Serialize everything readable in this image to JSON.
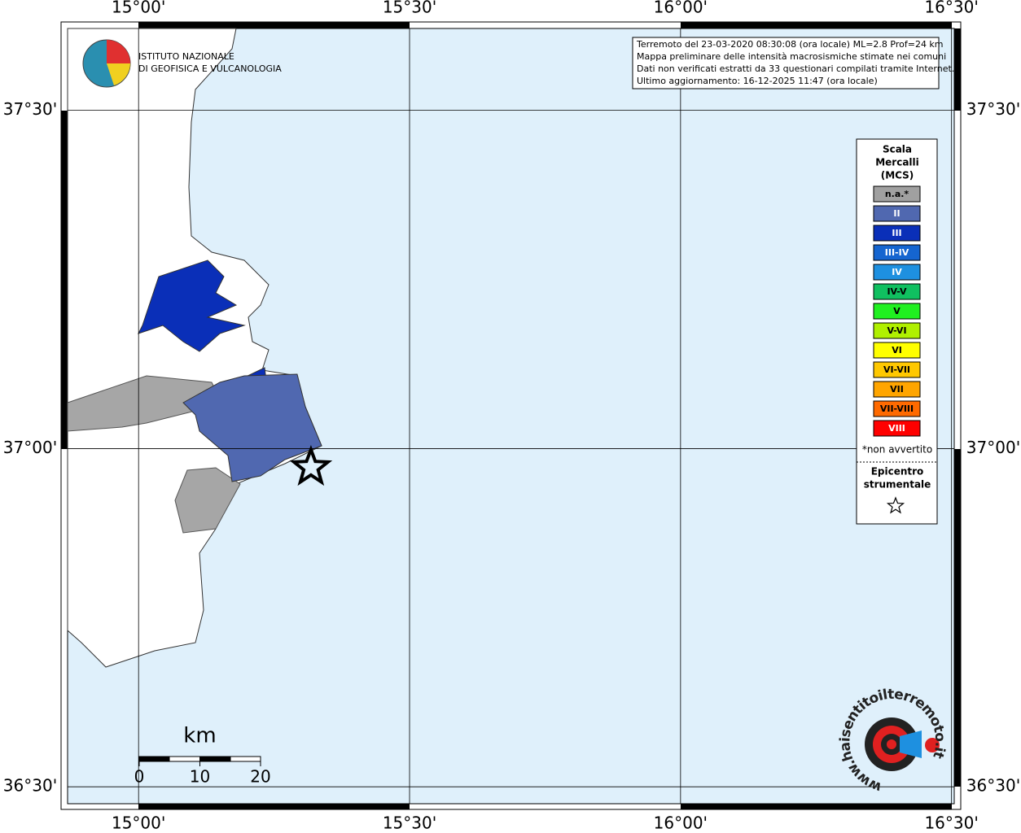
{
  "map": {
    "lon_range": [
      14.869,
      16.505
    ],
    "lat_range": [
      36.475,
      37.621
    ],
    "lon_ticks": [
      {
        "value": 15,
        "label": "15°00'"
      },
      {
        "value": 15.5,
        "label": "15°30'"
      },
      {
        "value": 16,
        "label": "16°00'"
      },
      {
        "value": 16.5,
        "label": "16°30'"
      }
    ],
    "lat_ticks": [
      {
        "value": 37.5,
        "label": "37°30'"
      },
      {
        "value": 37,
        "label": "37°00'"
      },
      {
        "value": 36.5,
        "label": "36°30'"
      }
    ],
    "epicenter": {
      "lon": 15.318,
      "lat": 36.972
    }
  },
  "logo": {
    "lines": [
      "ISTITUTO NAZIONALE",
      "DI GEOFISICA E VULCANOLOGIA"
    ]
  },
  "info": {
    "lines": [
      "Terremoto del 23-03-2020 08:30:08 (ora locale) ML=2.8 Prof=24 km",
      "Mappa preliminare delle intensità macrosismiche stimate nei comuni",
      "Dati non verificati estratti da 33 questionari compilati tramite Internet.",
      "Ultimo aggiornamento: 16-12-2025 11:47 (ora locale)"
    ]
  },
  "legend": {
    "title": [
      "Scala",
      "Mercalli",
      "(MCS)"
    ],
    "items": [
      {
        "label": "n.a.*",
        "color": "#a0a0a0"
      },
      {
        "label": "II",
        "color": "#5068b0"
      },
      {
        "label": "III",
        "color": "#0a2fb8"
      },
      {
        "label": "III-IV",
        "color": "#1565d0"
      },
      {
        "label": "IV",
        "color": "#1e90e0"
      },
      {
        "label": "IV-V",
        "color": "#10c060"
      },
      {
        "label": "V",
        "color": "#20f020"
      },
      {
        "label": "V-VI",
        "color": "#b0f000"
      },
      {
        "label": "VI",
        "color": "#ffff00"
      },
      {
        "label": "VI-VII",
        "color": "#ffc800"
      },
      {
        "label": "VII",
        "color": "#ffa500"
      },
      {
        "label": "VII-VIII",
        "color": "#ff6a00"
      },
      {
        "label": "VIII",
        "color": "#ff0000"
      }
    ],
    "note": "*non avvertito",
    "epicenter_label": [
      "Epicentro",
      "strumentale"
    ]
  },
  "scale_bar": {
    "unit": "km",
    "ticks": [
      0,
      10,
      20
    ]
  },
  "site_logo": {
    "text": "www.haisentitoilterremoto.it"
  }
}
